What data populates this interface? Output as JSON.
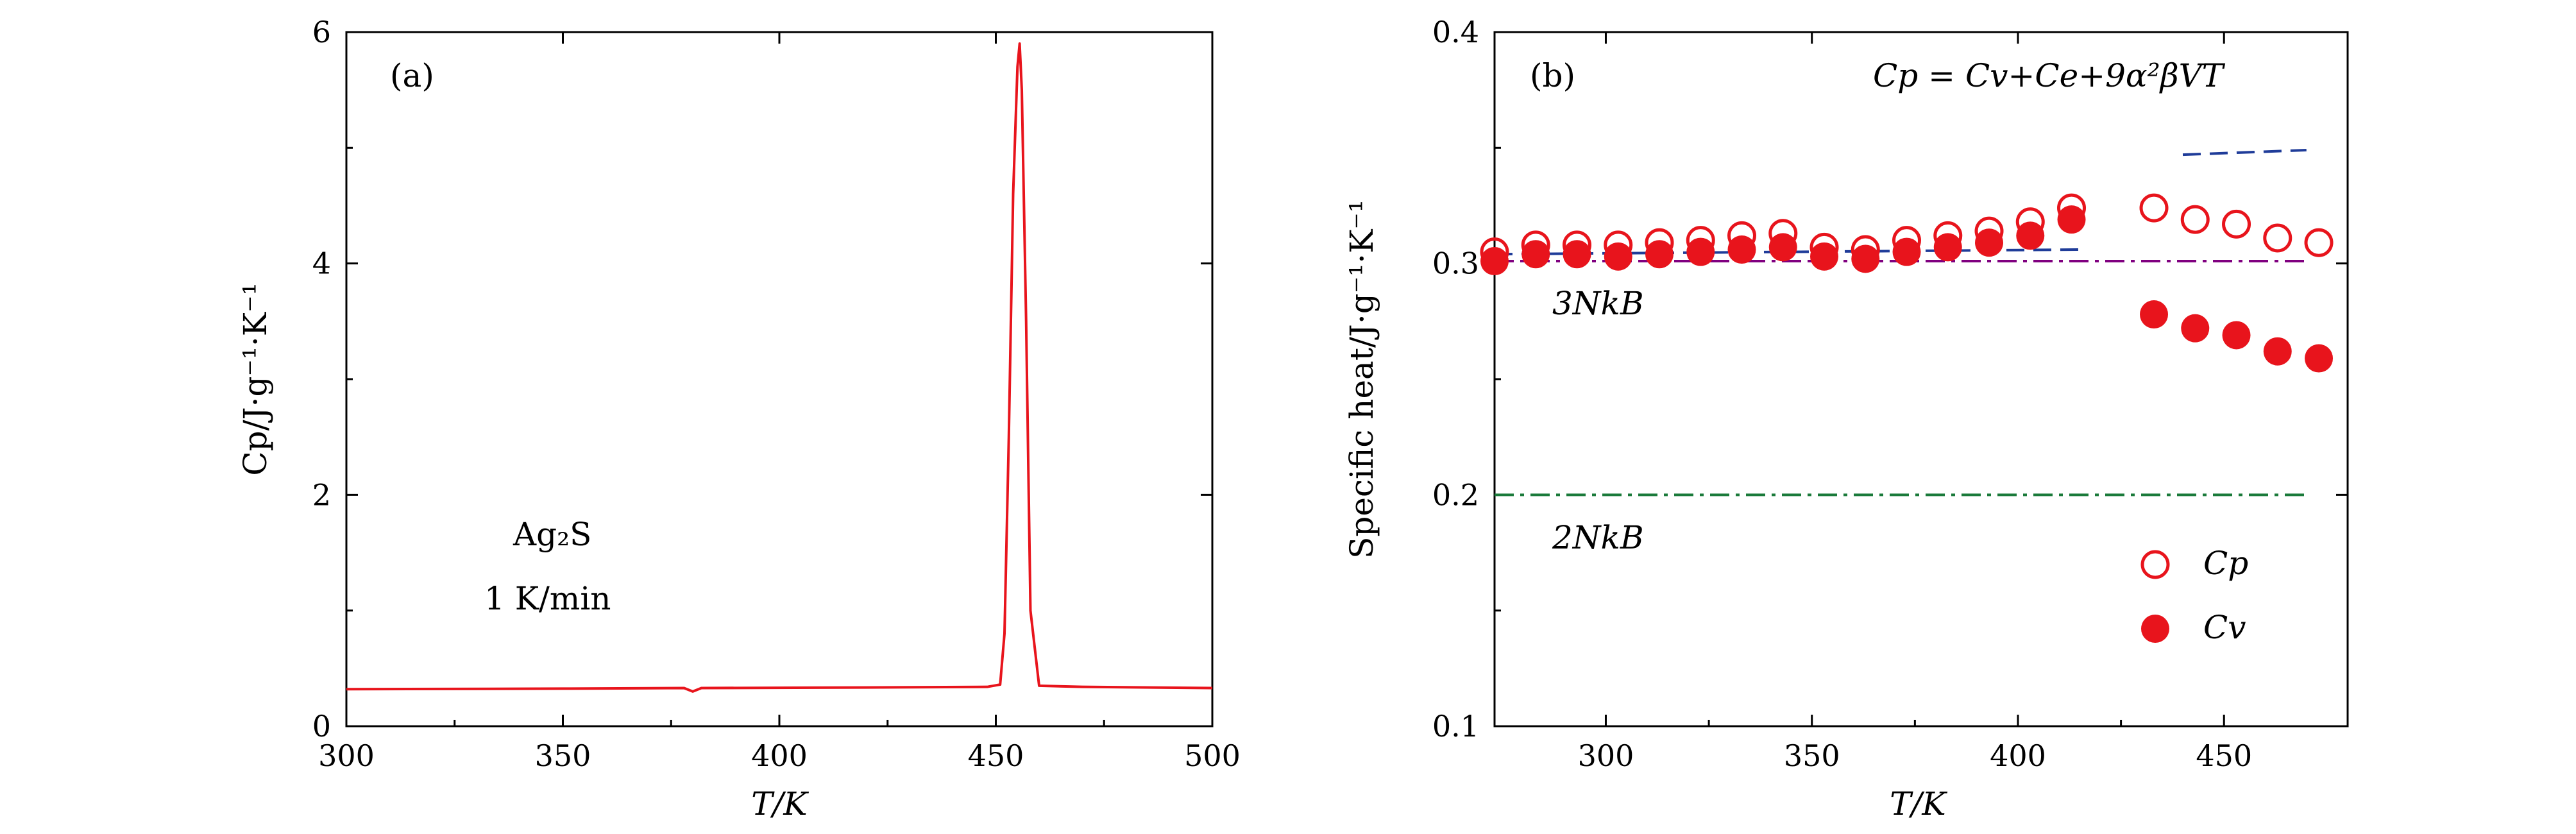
{
  "chart_data": [
    {
      "type": "line",
      "panel_label": "(a)",
      "xlabel": "T/K",
      "ylabel": "Cp/J·g⁻¹·K⁻¹",
      "xlim": [
        300,
        500
      ],
      "ylim": [
        0,
        6
      ],
      "xticks": [
        "300",
        "350",
        "400",
        "450",
        "500"
      ],
      "yticks": [
        "0",
        "2",
        "4",
        "6"
      ],
      "annotations": [
        "Ag₂S",
        "1 K/min"
      ],
      "series": [
        {
          "color": "#e8141c",
          "x": [
            300,
            350,
            378,
            380,
            382,
            420,
            448,
            451,
            452,
            453,
            454,
            455,
            455.5,
            456,
            457,
            458,
            460,
            470,
            500
          ],
          "y": [
            0.32,
            0.325,
            0.33,
            0.3,
            0.33,
            0.335,
            0.34,
            0.36,
            0.8,
            2.5,
            4.6,
            5.7,
            5.9,
            5.5,
            3.5,
            1.0,
            0.35,
            0.34,
            0.33
          ]
        }
      ]
    },
    {
      "type": "scatter",
      "panel_label": "(b)",
      "xlabel": "T/K",
      "ylabel": "Specific heat/J·g⁻¹·K⁻¹",
      "xlim": [
        273,
        480
      ],
      "ylim": [
        0.1,
        0.4
      ],
      "xticks": [
        "300",
        "350",
        "400",
        "450"
      ],
      "yticks": [
        "0.1",
        "0.2",
        "0.3",
        "0.4"
      ],
      "equation": "Cp = Cv+Ce+9α²βVT",
      "reference_lines": [
        {
          "label": "3NkB",
          "y": 0.301,
          "x": [
            273,
            470
          ],
          "color": "#800080",
          "style": "dash-dot"
        },
        {
          "label": "2NkB",
          "y": 0.2,
          "x": [
            273,
            470
          ],
          "color": "#1a7a3a",
          "style": "dash-dot"
        }
      ],
      "fit_lines": [
        {
          "x": [
            273,
            415
          ],
          "y": [
            0.304,
            0.306
          ],
          "color": "#1f3c99",
          "style": "dashed"
        },
        {
          "x": [
            440,
            470
          ],
          "y": [
            0.347,
            0.349
          ],
          "color": "#1f3c99",
          "style": "dashed"
        }
      ],
      "legend": {
        "position": "bottom-right",
        "entries": [
          "Cp",
          "Cv"
        ]
      },
      "series": [
        {
          "name": "Cp",
          "marker": "open-circle",
          "color": "#e8141c",
          "x": [
            273,
            283,
            293,
            303,
            313,
            323,
            333,
            343,
            353,
            363,
            373,
            383,
            393,
            403,
            413,
            433,
            443,
            453,
            463,
            473
          ],
          "y": [
            0.305,
            0.308,
            0.308,
            0.308,
            0.309,
            0.31,
            0.312,
            0.313,
            0.307,
            0.306,
            0.31,
            0.312,
            0.314,
            0.318,
            0.324,
            0.324,
            0.319,
            0.317,
            0.311,
            0.309
          ]
        },
        {
          "name": "Cv",
          "marker": "filled-circle",
          "color": "#e8141c",
          "x": [
            273,
            283,
            293,
            303,
            313,
            323,
            333,
            343,
            353,
            363,
            373,
            383,
            393,
            403,
            413,
            433,
            443,
            453,
            463,
            473
          ],
          "y": [
            0.301,
            0.304,
            0.304,
            0.303,
            0.304,
            0.305,
            0.306,
            0.307,
            0.303,
            0.302,
            0.305,
            0.307,
            0.309,
            0.312,
            0.319,
            0.278,
            0.272,
            0.269,
            0.262,
            0.259
          ]
        }
      ]
    }
  ]
}
